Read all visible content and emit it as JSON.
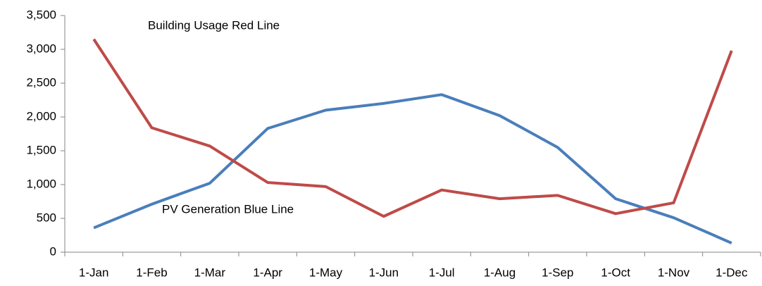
{
  "chart_data": {
    "type": "line",
    "categories": [
      "1-Jan",
      "1-Feb",
      "1-Mar",
      "1-Apr",
      "1-May",
      "1-Jun",
      "1-Jul",
      "1-Aug",
      "1-Sep",
      "1-Oct",
      "1-Nov",
      "1-Dec"
    ],
    "series": [
      {
        "color": "#4a7ebb",
        "values": [
          360,
          710,
          1020,
          1830,
          2100,
          2200,
          2330,
          2020,
          1550,
          790,
          510,
          135
        ]
      },
      {
        "color": "#be4b48",
        "values": [
          3150,
          1840,
          1570,
          1030,
          970,
          530,
          920,
          790,
          840,
          570,
          730,
          2980
        ]
      }
    ],
    "annotations": [
      "Building Usage Red Line",
      "PV Generation Blue Line"
    ],
    "ylim": [
      0,
      3500
    ],
    "yticks": [
      0,
      500,
      {
        "value": 1000,
        "label": "1,000"
      },
      {
        "value": 1500,
        "label": "1,500"
      },
      {
        "value": 2000,
        "label": "2,000"
      },
      {
        "value": 2500,
        "label": "2,500"
      },
      {
        "value": 3000,
        "label": "3,000"
      },
      {
        "value": 3500,
        "label": "3,500"
      }
    ],
    "grid": false
  }
}
